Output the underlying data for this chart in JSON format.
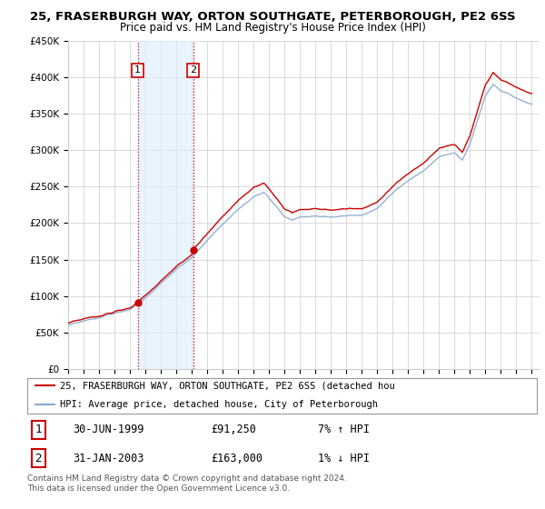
{
  "title": "25, FRASERBURGH WAY, ORTON SOUTHGATE, PETERBOROUGH, PE2 6SS",
  "subtitle": "Price paid vs. HM Land Registry's House Price Index (HPI)",
  "ylim": [
    0,
    450000
  ],
  "yticks": [
    0,
    50000,
    100000,
    150000,
    200000,
    250000,
    300000,
    350000,
    400000,
    450000
  ],
  "sale1_year": 1999.5,
  "sale1_price": 91250,
  "sale2_year": 2003.083,
  "sale2_price": 163000,
  "legend_property": "25, FRASERBURGH WAY, ORTON SOUTHGATE, PE2 6SS (detached hou",
  "legend_hpi": "HPI: Average price, detached house, City of Peterborough",
  "table_row1": [
    "1",
    "30-JUN-1999",
    "£91,250",
    "7% ↑ HPI"
  ],
  "table_row2": [
    "2",
    "31-JAN-2003",
    "£163,000",
    "1% ↓ HPI"
  ],
  "footnote": "Contains HM Land Registry data © Crown copyright and database right 2024.\nThis data is licensed under the Open Government Licence v3.0.",
  "property_line_color": "#cc0000",
  "hpi_line_color": "#88aacc",
  "vline_color": "#cc0000",
  "shade_color": "#ddeeff",
  "background_color": "#ffffff",
  "grid_color": "#cccccc",
  "title_fontsize": 9.5,
  "subtitle_fontsize": 8.5,
  "tick_fontsize": 7.5
}
